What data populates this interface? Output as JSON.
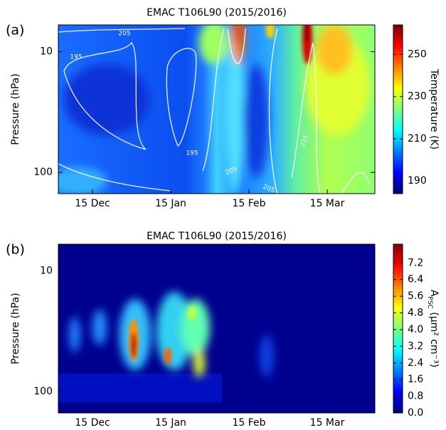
{
  "chart_data": [
    {
      "type": "heatmap",
      "panel_label": "(a)",
      "title": "EMAC T106L90 (2015/2016)",
      "ylabel": "Pressure (hPa)",
      "xticks": [
        "15 Dec",
        "15 Jan",
        "15 Feb",
        "15 Mar"
      ],
      "log_scale": true,
      "ylim": [
        150,
        6
      ],
      "yticks": [
        10,
        100
      ],
      "colorbar_label": [
        "Temperature (K)"
      ],
      "clim": [
        184,
        264
      ],
      "cticks": [
        190,
        210,
        230,
        250
      ],
      "contour_labels": [
        205,
        195,
        195,
        205,
        205,
        215
      ]
    },
    {
      "type": "heatmap",
      "panel_label": "(b)",
      "title": "EMAC T106L90 (2015/2016)",
      "ylabel": "Pressure (hPa)",
      "xticks": [
        "15 Dec",
        "15 Jan",
        "15 Feb",
        "15 Mar"
      ],
      "log_scale": true,
      "ylim": [
        150,
        6
      ],
      "yticks": [
        10,
        100
      ],
      "colorbar_label": [
        "A",
        "PSC",
        " (μm² cm⁻³)"
      ],
      "clim": [
        0,
        8.1
      ],
      "cticks": [
        {
          "value": 0,
          "label": "0.0"
        },
        0.8,
        1.6,
        2.4,
        3.2,
        {
          "value": 4,
          "label": "4.0"
        },
        4.8,
        5.6,
        6.4,
        7.2
      ]
    }
  ]
}
